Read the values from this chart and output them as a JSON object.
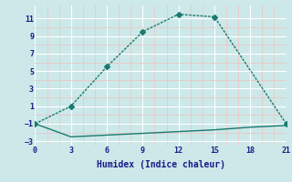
{
  "xlabel": "Humidex (Indice chaleur)",
  "line1_x": [
    0,
    3,
    6,
    9,
    12,
    15,
    21
  ],
  "line1_y": [
    -1,
    1,
    5.5,
    9.5,
    11.5,
    11.2,
    -1
  ],
  "line2_x": [
    0,
    3,
    6,
    9,
    12,
    15,
    18,
    21
  ],
  "line2_y": [
    -1,
    -2.5,
    -2.3,
    -2.1,
    -1.9,
    -1.7,
    -1.4,
    -1.2
  ],
  "line_color": "#1a7a6e",
  "bg_color": "#cce8e8",
  "grid_major_color": "#ffffff",
  "grid_minor_color": "#e8c8c8",
  "xlim": [
    0,
    21
  ],
  "ylim": [
    -3.5,
    12.5
  ],
  "xticks": [
    0,
    3,
    6,
    9,
    12,
    15,
    18,
    21
  ],
  "yticks": [
    -3,
    -1,
    1,
    3,
    5,
    7,
    9,
    11
  ],
  "marker": "D",
  "markersize": 3,
  "linewidth": 1.0,
  "tick_color": "#1a1a8c",
  "tick_fontsize": 6,
  "xlabel_fontsize": 7
}
